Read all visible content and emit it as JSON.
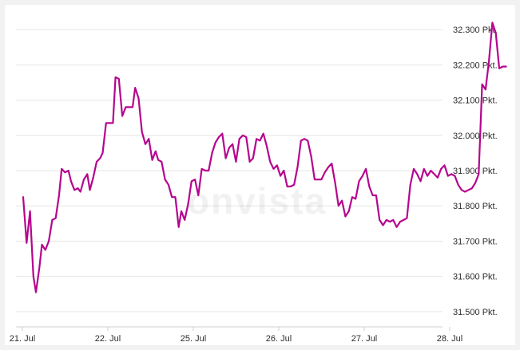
{
  "brand": {
    "watermark": "onvista"
  },
  "colors": {
    "line": "#b5058e",
    "grid": "#e6e6e6",
    "axis": "#cfcfcf",
    "text": "#2b2b2b"
  },
  "chart_data": {
    "type": "line",
    "title": "",
    "xlabel": "",
    "ylabel": "",
    "unit_suffix": " Pkt.",
    "ylim": [
      31450,
      32350
    ],
    "yticks": [
      31500,
      31600,
      31700,
      31800,
      31900,
      32000,
      32100,
      32200,
      32300
    ],
    "ytick_labels": [
      "31.500 Pkt.",
      "31.600 Pkt.",
      "31.700 Pkt.",
      "31.800 Pkt.",
      "31.900 Pkt.",
      "32.000 Pkt.",
      "32.100 Pkt.",
      "32.200 Pkt.",
      "32.300 Pkt."
    ],
    "x_categories": [
      "21. Jul",
      "22. Jul",
      "25. Jul",
      "26. Jul",
      "27. Jul",
      "28. Jul"
    ],
    "grid": true,
    "legend": "none",
    "series": [
      {
        "values": [
          [
            0.0,
            31825
          ],
          [
            0.04,
            31695
          ],
          [
            0.08,
            31785
          ],
          [
            0.12,
            31600
          ],
          [
            0.15,
            31555
          ],
          [
            0.19,
            31625
          ],
          [
            0.22,
            31690
          ],
          [
            0.26,
            31675
          ],
          [
            0.3,
            31700
          ],
          [
            0.34,
            31760
          ],
          [
            0.38,
            31765
          ],
          [
            0.42,
            31830
          ],
          [
            0.45,
            31905
          ],
          [
            0.49,
            31895
          ],
          [
            0.53,
            31900
          ],
          [
            0.56,
            31870
          ],
          [
            0.6,
            31845
          ],
          [
            0.64,
            31850
          ],
          [
            0.67,
            31840
          ],
          [
            0.71,
            31875
          ],
          [
            0.75,
            31890
          ],
          [
            0.78,
            31845
          ],
          [
            0.82,
            31880
          ],
          [
            0.86,
            31925
          ],
          [
            0.9,
            31935
          ],
          [
            0.93,
            31950
          ],
          [
            0.97,
            32035
          ],
          [
            1.01,
            32035
          ],
          [
            1.05,
            32035
          ],
          [
            1.08,
            32165
          ],
          [
            1.12,
            32160
          ],
          [
            1.16,
            32055
          ],
          [
            1.2,
            32080
          ],
          [
            1.24,
            32080
          ],
          [
            1.28,
            32080
          ],
          [
            1.31,
            32135
          ],
          [
            1.35,
            32105
          ],
          [
            1.39,
            32010
          ],
          [
            1.43,
            31975
          ],
          [
            1.47,
            31990
          ],
          [
            1.51,
            31930
          ],
          [
            1.55,
            31955
          ],
          [
            1.58,
            31930
          ],
          [
            1.62,
            31925
          ],
          [
            1.66,
            31875
          ],
          [
            1.7,
            31860
          ],
          [
            1.74,
            31825
          ],
          [
            1.78,
            31825
          ],
          [
            1.82,
            31740
          ],
          [
            1.85,
            31785
          ],
          [
            1.89,
            31760
          ],
          [
            1.93,
            31805
          ],
          [
            1.97,
            31870
          ],
          [
            2.01,
            31875
          ],
          [
            2.05,
            31830
          ],
          [
            2.09,
            31905
          ],
          [
            2.13,
            31900
          ],
          [
            2.17,
            31900
          ],
          [
            2.21,
            31950
          ],
          [
            2.25,
            31980
          ],
          [
            2.29,
            31995
          ],
          [
            2.33,
            32005
          ],
          [
            2.37,
            31935
          ],
          [
            2.41,
            31965
          ],
          [
            2.45,
            31975
          ],
          [
            2.49,
            31925
          ],
          [
            2.53,
            31990
          ],
          [
            2.57,
            32000
          ],
          [
            2.61,
            31995
          ],
          [
            2.65,
            31925
          ],
          [
            2.69,
            31935
          ],
          [
            2.73,
            31990
          ],
          [
            2.77,
            31985
          ],
          [
            2.81,
            32005
          ],
          [
            2.85,
            31970
          ],
          [
            2.89,
            31925
          ],
          [
            2.93,
            31905
          ],
          [
            2.97,
            31915
          ],
          [
            3.01,
            31885
          ],
          [
            3.05,
            31900
          ],
          [
            3.09,
            31855
          ],
          [
            3.13,
            31855
          ],
          [
            3.17,
            31860
          ],
          [
            3.21,
            31910
          ],
          [
            3.25,
            31985
          ],
          [
            3.29,
            31990
          ],
          [
            3.33,
            31985
          ],
          [
            3.37,
            31940
          ],
          [
            3.41,
            31875
          ],
          [
            3.45,
            31875
          ],
          [
            3.49,
            31875
          ],
          [
            3.53,
            31895
          ],
          [
            3.57,
            31910
          ],
          [
            3.61,
            31920
          ],
          [
            3.65,
            31865
          ],
          [
            3.69,
            31800
          ],
          [
            3.73,
            31815
          ],
          [
            3.77,
            31770
          ],
          [
            3.81,
            31785
          ],
          [
            3.85,
            31825
          ],
          [
            3.89,
            31820
          ],
          [
            3.93,
            31870
          ],
          [
            3.97,
            31885
          ],
          [
            4.01,
            31905
          ],
          [
            4.05,
            31855
          ],
          [
            4.09,
            31830
          ],
          [
            4.13,
            31830
          ],
          [
            4.17,
            31760
          ],
          [
            4.21,
            31745
          ],
          [
            4.25,
            31760
          ],
          [
            4.29,
            31755
          ],
          [
            4.33,
            31760
          ],
          [
            4.37,
            31740
          ],
          [
            4.41,
            31755
          ],
          [
            4.45,
            31760
          ],
          [
            4.49,
            31765
          ],
          [
            4.53,
            31860
          ],
          [
            4.57,
            31905
          ],
          [
            4.61,
            31890
          ],
          [
            4.65,
            31870
          ],
          [
            4.69,
            31905
          ],
          [
            4.73,
            31885
          ],
          [
            4.77,
            31900
          ],
          [
            4.81,
            31890
          ],
          [
            4.85,
            31880
          ],
          [
            4.89,
            31905
          ],
          [
            4.93,
            31915
          ],
          [
            4.97,
            31885
          ],
          [
            5.01,
            31890
          ],
          [
            5.05,
            31885
          ],
          [
            5.09,
            31860
          ],
          [
            5.13,
            31845
          ],
          [
            5.17,
            31840
          ],
          [
            5.21,
            31845
          ],
          [
            5.25,
            31850
          ],
          [
            5.29,
            31865
          ],
          [
            5.33,
            31890
          ],
          [
            5.37,
            32145
          ],
          [
            5.41,
            32130
          ],
          [
            5.45,
            32210
          ],
          [
            5.49,
            32320
          ],
          [
            5.53,
            32290
          ],
          [
            5.57,
            32190
          ],
          [
            5.61,
            32195
          ],
          [
            5.65,
            32195
          ]
        ]
      }
    ]
  }
}
